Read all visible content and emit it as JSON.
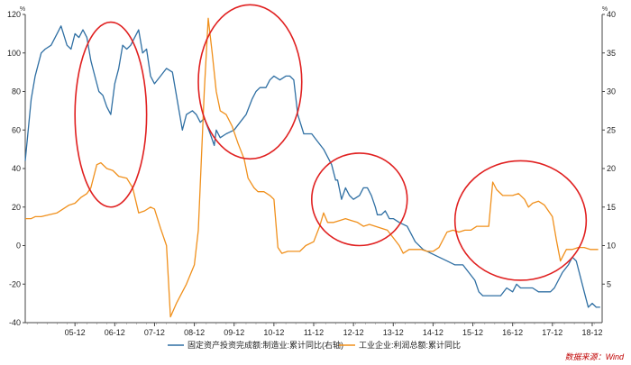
{
  "chart_data": {
    "type": "line",
    "y_left_unit": "%",
    "y_right_unit": "%",
    "ylim_left": [
      -40,
      120
    ],
    "ylim_right": [
      0,
      40
    ],
    "left_ticks": [
      "120",
      "100",
      "80",
      "60",
      "40",
      "20",
      "0",
      "-20",
      "-40"
    ],
    "right_ticks": [
      "40",
      "35",
      "30",
      "25",
      "20",
      "15",
      "10",
      "5"
    ],
    "x_ticks": [
      "05-12",
      "06-12",
      "07-12",
      "08-12",
      "09-12",
      "10-12",
      "11-12",
      "12-12",
      "13-12",
      "14-12",
      "15-12",
      "16-12",
      "17-12",
      "18-12"
    ],
    "xlim": [
      2004.7,
      2019.2
    ],
    "series": [
      {
        "name": "固定资产投资完成额:制造业:累计同比(右轴)",
        "axis": "right",
        "color": "#2f6fa3",
        "points": [
          [
            2004.7,
            21
          ],
          [
            2004.85,
            29
          ],
          [
            2004.95,
            32
          ],
          [
            2005.1,
            35
          ],
          [
            2005.2,
            35.5
          ],
          [
            2005.35,
            36
          ],
          [
            2005.5,
            37.5
          ],
          [
            2005.6,
            38.5
          ],
          [
            2005.75,
            36
          ],
          [
            2005.85,
            35.5
          ],
          [
            2005.95,
            37.5
          ],
          [
            2006.05,
            37
          ],
          [
            2006.15,
            38
          ],
          [
            2006.25,
            37
          ],
          [
            2006.35,
            34
          ],
          [
            2006.45,
            32
          ],
          [
            2006.55,
            30
          ],
          [
            2006.65,
            29.5
          ],
          [
            2006.75,
            28
          ],
          [
            2006.85,
            27
          ],
          [
            2006.95,
            31
          ],
          [
            2007.05,
            33
          ],
          [
            2007.15,
            36
          ],
          [
            2007.25,
            35.5
          ],
          [
            2007.35,
            36
          ],
          [
            2007.45,
            37
          ],
          [
            2007.55,
            38
          ],
          [
            2007.65,
            35
          ],
          [
            2007.75,
            35.5
          ],
          [
            2007.85,
            32
          ],
          [
            2007.95,
            31
          ],
          [
            2008.1,
            32
          ],
          [
            2008.25,
            33
          ],
          [
            2008.4,
            32.5
          ],
          [
            2008.55,
            28
          ],
          [
            2008.65,
            25
          ],
          [
            2008.75,
            27
          ],
          [
            2008.9,
            27.5
          ],
          [
            2009.0,
            27
          ],
          [
            2009.1,
            26
          ],
          [
            2009.2,
            26.5
          ],
          [
            2009.35,
            24.5
          ],
          [
            2009.45,
            23
          ],
          [
            2009.5,
            25
          ],
          [
            2009.6,
            24
          ],
          [
            2009.75,
            24.5
          ],
          [
            2009.95,
            25
          ],
          [
            2010.1,
            26
          ],
          [
            2010.25,
            27
          ],
          [
            2010.4,
            29
          ],
          [
            2010.5,
            30
          ],
          [
            2010.6,
            30.5
          ],
          [
            2010.75,
            30.5
          ],
          [
            2010.85,
            31.5
          ],
          [
            2010.95,
            32
          ],
          [
            2011.1,
            31.5
          ],
          [
            2011.25,
            32
          ],
          [
            2011.35,
            32
          ],
          [
            2011.45,
            31.5
          ],
          [
            2011.55,
            27
          ],
          [
            2011.7,
            24.5
          ],
          [
            2011.9,
            24.5
          ],
          [
            2012.05,
            23.5
          ],
          [
            2012.2,
            22.5
          ],
          [
            2012.4,
            20.5
          ],
          [
            2012.5,
            18.5
          ],
          [
            2012.55,
            18.5
          ],
          [
            2012.65,
            16
          ],
          [
            2012.75,
            17.5
          ],
          [
            2012.85,
            16.5
          ],
          [
            2012.95,
            16
          ],
          [
            2013.1,
            16.5
          ],
          [
            2013.2,
            17.5
          ],
          [
            2013.3,
            17.5
          ],
          [
            2013.4,
            16.5
          ],
          [
            2013.5,
            15
          ],
          [
            2013.55,
            14
          ],
          [
            2013.65,
            14
          ],
          [
            2013.75,
            14.5
          ],
          [
            2013.85,
            13.5
          ],
          [
            2013.95,
            13.5
          ],
          [
            2014.1,
            13
          ],
          [
            2014.3,
            12.5
          ],
          [
            2014.5,
            10.5
          ],
          [
            2014.7,
            9.5
          ],
          [
            2014.9,
            9
          ],
          [
            2015.1,
            8.5
          ],
          [
            2015.3,
            8
          ],
          [
            2015.5,
            7.5
          ],
          [
            2015.7,
            7.5
          ],
          [
            2015.85,
            6.5
          ],
          [
            2016.0,
            5.5
          ],
          [
            2016.1,
            4
          ],
          [
            2016.2,
            3.5
          ],
          [
            2016.35,
            3.5
          ],
          [
            2016.5,
            3.5
          ],
          [
            2016.65,
            3.5
          ],
          [
            2016.8,
            4.5
          ],
          [
            2016.95,
            4
          ],
          [
            2017.05,
            5
          ],
          [
            2017.15,
            4.5
          ],
          [
            2017.3,
            4.5
          ],
          [
            2017.45,
            4.5
          ],
          [
            2017.6,
            4
          ],
          [
            2017.75,
            4
          ],
          [
            2017.9,
            4
          ],
          [
            2018.0,
            4.5
          ],
          [
            2018.1,
            5.5
          ],
          [
            2018.2,
            6.5
          ],
          [
            2018.35,
            7.5
          ],
          [
            2018.45,
            8.5
          ],
          [
            2018.55,
            8
          ],
          [
            2018.65,
            6
          ],
          [
            2018.75,
            4
          ],
          [
            2018.85,
            2
          ],
          [
            2018.95,
            2.5
          ],
          [
            2019.05,
            2
          ],
          [
            2019.15,
            2
          ]
        ]
      },
      {
        "name": "工业企业:利润总额:累计同比",
        "axis": "left",
        "color": "#f0901c",
        "points": [
          [
            2004.7,
            14
          ],
          [
            2004.85,
            14
          ],
          [
            2004.95,
            15
          ],
          [
            2005.1,
            15
          ],
          [
            2005.3,
            16
          ],
          [
            2005.5,
            17
          ],
          [
            2005.65,
            19
          ],
          [
            2005.8,
            21
          ],
          [
            2005.95,
            22
          ],
          [
            2006.1,
            25
          ],
          [
            2006.25,
            27
          ],
          [
            2006.35,
            30
          ],
          [
            2006.5,
            42
          ],
          [
            2006.6,
            43
          ],
          [
            2006.75,
            40
          ],
          [
            2006.9,
            39
          ],
          [
            2007.05,
            36
          ],
          [
            2007.25,
            35
          ],
          [
            2007.4,
            30
          ],
          [
            2007.55,
            17
          ],
          [
            2007.7,
            18
          ],
          [
            2007.85,
            20
          ],
          [
            2007.95,
            19
          ],
          [
            2008.1,
            9
          ],
          [
            2008.25,
            0
          ],
          [
            2008.35,
            -37
          ],
          [
            2008.5,
            -30
          ],
          [
            2008.75,
            -20
          ],
          [
            2008.95,
            -10
          ],
          [
            2009.05,
            8
          ],
          [
            2009.2,
            80
          ],
          [
            2009.3,
            118
          ],
          [
            2009.4,
            100
          ],
          [
            2009.5,
            80
          ],
          [
            2009.6,
            70
          ],
          [
            2009.75,
            68
          ],
          [
            2009.9,
            62
          ],
          [
            2010.05,
            53
          ],
          [
            2010.2,
            45
          ],
          [
            2010.3,
            35
          ],
          [
            2010.45,
            30
          ],
          [
            2010.55,
            28
          ],
          [
            2010.7,
            28
          ],
          [
            2010.85,
            26
          ],
          [
            2010.95,
            24
          ],
          [
            2011.05,
            -1
          ],
          [
            2011.15,
            -4
          ],
          [
            2011.3,
            -3
          ],
          [
            2011.45,
            -3
          ],
          [
            2011.6,
            -3
          ],
          [
            2011.75,
            0
          ],
          [
            2011.95,
            2
          ],
          [
            2012.1,
            10
          ],
          [
            2012.2,
            17
          ],
          [
            2012.3,
            12
          ],
          [
            2012.45,
            12
          ],
          [
            2012.6,
            13
          ],
          [
            2012.75,
            14
          ],
          [
            2012.9,
            13
          ],
          [
            2013.05,
            12
          ],
          [
            2013.2,
            10
          ],
          [
            2013.35,
            11
          ],
          [
            2013.5,
            10
          ],
          [
            2013.65,
            9
          ],
          [
            2013.8,
            8
          ],
          [
            2013.95,
            4
          ],
          [
            2014.1,
            0
          ],
          [
            2014.2,
            -4
          ],
          [
            2014.35,
            -2
          ],
          [
            2014.5,
            -2
          ],
          [
            2014.65,
            -2
          ],
          [
            2014.8,
            -3
          ],
          [
            2014.95,
            -3
          ],
          [
            2015.1,
            -1
          ],
          [
            2015.3,
            7
          ],
          [
            2015.45,
            8
          ],
          [
            2015.6,
            7
          ],
          [
            2015.75,
            8
          ],
          [
            2015.9,
            8
          ],
          [
            2016.05,
            10
          ],
          [
            2016.2,
            10
          ],
          [
            2016.35,
            10
          ],
          [
            2016.45,
            33
          ],
          [
            2016.55,
            29
          ],
          [
            2016.7,
            26
          ],
          [
            2016.85,
            26
          ],
          [
            2016.95,
            26
          ],
          [
            2017.1,
            27
          ],
          [
            2017.25,
            24
          ],
          [
            2017.35,
            20
          ],
          [
            2017.45,
            22
          ],
          [
            2017.6,
            23
          ],
          [
            2017.75,
            21
          ],
          [
            2017.85,
            18
          ],
          [
            2017.95,
            15
          ],
          [
            2018.05,
            3
          ],
          [
            2018.15,
            -8
          ],
          [
            2018.3,
            -2
          ],
          [
            2018.45,
            -2
          ],
          [
            2018.6,
            -1
          ],
          [
            2018.75,
            -1
          ],
          [
            2018.9,
            -2
          ],
          [
            2019.1,
            -2
          ]
        ]
      }
    ],
    "annotations": [
      {
        "type": "ellipse",
        "color": "#e02020",
        "cx": 2006.85,
        "cy": 68,
        "rx": 0.9,
        "ry": 48
      },
      {
        "type": "ellipse",
        "color": "#e02020",
        "cx": 2010.35,
        "cy": 85,
        "rx": 1.3,
        "ry": 40
      },
      {
        "type": "ellipse",
        "color": "#e02020",
        "cx": 2013.1,
        "cy": 24,
        "rx": 1.2,
        "ry": 24
      },
      {
        "type": "ellipse",
        "color": "#e02020",
        "cx": 2017.15,
        "cy": 13,
        "rx": 1.65,
        "ry": 31
      }
    ]
  },
  "source_text": "数据来源：Wind"
}
